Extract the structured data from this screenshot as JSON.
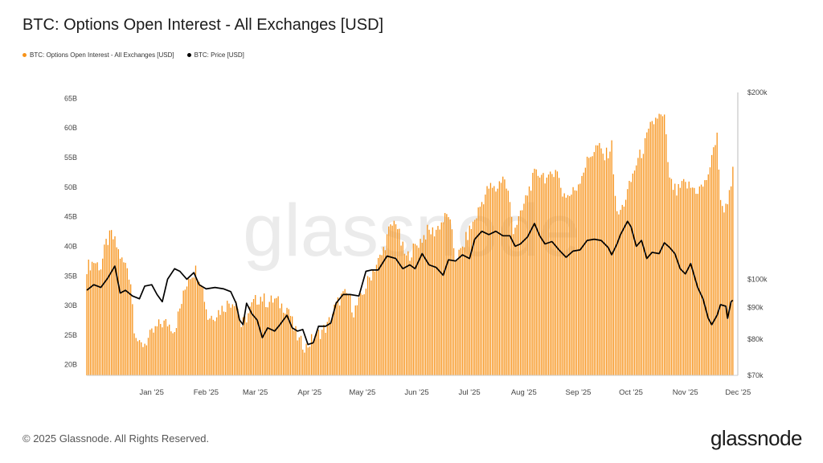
{
  "header": {
    "title": "BTC: Options Open Interest - All Exchanges [USD]"
  },
  "legend": [
    {
      "label": "BTC: Options Open Interest - All Exchanges [USD]",
      "color": "#F7931A"
    },
    {
      "label": "BTC: Price [USD]",
      "color": "#000000"
    }
  ],
  "watermark": "glassnode",
  "footer": {
    "copyright": "© 2025 Glassnode. All Rights Reserved.",
    "logo": "glassnode"
  },
  "chart_data": {
    "type": "bar",
    "title": "BTC: Options Open Interest - All Exchanges [USD]",
    "grid": false,
    "x_ticks": [
      "Jan '25",
      "Feb '25",
      "Mar '25",
      "Apr '25",
      "May '25",
      "Jun '25",
      "Jul '25",
      "Aug '25",
      "Sep '25",
      "Oct '25",
      "Nov '25",
      "Dec '25"
    ],
    "x_tick_dates": [
      "2025-01-01",
      "2025-02-01",
      "2025-03-01",
      "2025-04-01",
      "2025-05-01",
      "2025-06-01",
      "2025-07-01",
      "2025-08-01",
      "2025-09-01",
      "2025-10-01",
      "2025-11-01",
      "2025-12-01"
    ],
    "x_range": [
      "2024-12-01",
      "2025-12-05"
    ],
    "y_left": {
      "unit": "USD",
      "ticks": [
        "20B",
        "25B",
        "30B",
        "35B",
        "40B",
        "45B",
        "50B",
        "55B",
        "60B",
        "65B"
      ],
      "tick_values": [
        20,
        25,
        30,
        35,
        40,
        45,
        50,
        55,
        60,
        65
      ],
      "range": [
        18.2,
        66
      ]
    },
    "y_right": {
      "scale": "log",
      "ticks": [
        "$70k",
        "$80k",
        "$90k",
        "$100k",
        "$200k"
      ],
      "tick_values": [
        70000,
        80000,
        90000,
        100000,
        200000
      ],
      "range": [
        70000,
        200000
      ]
    },
    "series": [
      {
        "name": "BTC: Options Open Interest - All Exchanges [USD]",
        "axis": "left",
        "style": "bars",
        "color": "#F7931A",
        "unit": "B USD",
        "points": [
          [
            "2024-12-01",
            36.5
          ],
          [
            "2024-12-05",
            37.5
          ],
          [
            "2024-12-09",
            36.5
          ],
          [
            "2024-12-12",
            40.5
          ],
          [
            "2024-12-15",
            42.0
          ],
          [
            "2024-12-18",
            40.0
          ],
          [
            "2024-12-21",
            37.5
          ],
          [
            "2024-12-24",
            36.5
          ],
          [
            "2024-12-26",
            34.0
          ],
          [
            "2024-12-28",
            26.5
          ],
          [
            "2024-12-31",
            23.0
          ],
          [
            "2025-01-04",
            24.0
          ],
          [
            "2025-01-08",
            25.5
          ],
          [
            "2025-01-12",
            27.0
          ],
          [
            "2025-01-16",
            27.0
          ],
          [
            "2025-01-20",
            26.0
          ],
          [
            "2025-01-24",
            30.5
          ],
          [
            "2025-01-28",
            35.0
          ],
          [
            "2025-02-01",
            36.0
          ],
          [
            "2025-02-04",
            34.5
          ],
          [
            "2025-02-08",
            28.0
          ],
          [
            "2025-02-12",
            28.5
          ],
          [
            "2025-02-16",
            29.5
          ],
          [
            "2025-02-20",
            30.5
          ],
          [
            "2025-02-24",
            31.0
          ],
          [
            "2025-02-27",
            26.5
          ],
          [
            "2025-03-02",
            28.0
          ],
          [
            "2025-03-06",
            30.5
          ],
          [
            "2025-03-10",
            31.5
          ],
          [
            "2025-03-14",
            30.5
          ],
          [
            "2025-03-18",
            31.0
          ],
          [
            "2025-03-22",
            30.0
          ],
          [
            "2025-03-26",
            29.5
          ],
          [
            "2025-03-29",
            26.0
          ],
          [
            "2025-04-01",
            24.0
          ],
          [
            "2025-04-05",
            23.0
          ],
          [
            "2025-04-09",
            24.5
          ],
          [
            "2025-04-13",
            25.5
          ],
          [
            "2025-04-17",
            26.5
          ],
          [
            "2025-04-21",
            29.5
          ],
          [
            "2025-04-25",
            31.5
          ],
          [
            "2025-04-29",
            32.0
          ],
          [
            "2025-05-02",
            29.0
          ],
          [
            "2025-05-06",
            31.0
          ],
          [
            "2025-05-10",
            34.0
          ],
          [
            "2025-05-14",
            36.5
          ],
          [
            "2025-05-18",
            38.5
          ],
          [
            "2025-05-22",
            42.5
          ],
          [
            "2025-05-26",
            44.5
          ],
          [
            "2025-05-29",
            40.5
          ],
          [
            "2025-06-01",
            38.0
          ],
          [
            "2025-06-05",
            39.5
          ],
          [
            "2025-06-09",
            41.0
          ],
          [
            "2025-06-13",
            42.5
          ],
          [
            "2025-06-17",
            42.5
          ],
          [
            "2025-06-21",
            44.0
          ],
          [
            "2025-06-25",
            45.5
          ],
          [
            "2025-06-29",
            38.0
          ],
          [
            "2025-07-02",
            39.0
          ],
          [
            "2025-07-06",
            42.0
          ],
          [
            "2025-07-10",
            44.5
          ],
          [
            "2025-07-14",
            47.5
          ],
          [
            "2025-07-18",
            50.0
          ],
          [
            "2025-07-22",
            49.5
          ],
          [
            "2025-07-26",
            52.0
          ],
          [
            "2025-07-29",
            49.0
          ],
          [
            "2025-08-01",
            43.0
          ],
          [
            "2025-08-05",
            45.0
          ],
          [
            "2025-08-09",
            49.0
          ],
          [
            "2025-08-13",
            52.0
          ],
          [
            "2025-08-17",
            52.5
          ],
          [
            "2025-08-21",
            51.0
          ],
          [
            "2025-08-25",
            53.5
          ],
          [
            "2025-08-29",
            49.0
          ],
          [
            "2025-09-02",
            48.5
          ],
          [
            "2025-09-06",
            50.0
          ],
          [
            "2025-09-10",
            53.0
          ],
          [
            "2025-09-14",
            55.5
          ],
          [
            "2025-09-18",
            57.0
          ],
          [
            "2025-09-22",
            55.0
          ],
          [
            "2025-09-26",
            57.0
          ],
          [
            "2025-09-29",
            45.0
          ],
          [
            "2025-10-02",
            46.5
          ],
          [
            "2025-10-06",
            50.0
          ],
          [
            "2025-10-10",
            54.0
          ],
          [
            "2025-10-14",
            56.5
          ],
          [
            "2025-10-18",
            60.0
          ],
          [
            "2025-10-22",
            62.0
          ],
          [
            "2025-10-26",
            61.5
          ],
          [
            "2025-10-29",
            51.0
          ],
          [
            "2025-11-02",
            49.0
          ],
          [
            "2025-11-06",
            50.5
          ],
          [
            "2025-11-10",
            50.0
          ],
          [
            "2025-11-14",
            49.5
          ],
          [
            "2025-11-18",
            50.5
          ],
          [
            "2025-11-22",
            54.5
          ],
          [
            "2025-11-25",
            59.5
          ],
          [
            "2025-11-27",
            47.0
          ],
          [
            "2025-11-30",
            46.5
          ],
          [
            "2025-12-02",
            49.5
          ],
          [
            "2025-12-04",
            52.5
          ]
        ]
      },
      {
        "name": "BTC: Price [USD]",
        "axis": "right",
        "style": "line",
        "color": "#000000",
        "unit": "USD",
        "points": [
          [
            "2024-12-01",
            96000
          ],
          [
            "2024-12-05",
            98000
          ],
          [
            "2024-12-09",
            97000
          ],
          [
            "2024-12-13",
            100500
          ],
          [
            "2024-12-17",
            105000
          ],
          [
            "2024-12-20",
            95000
          ],
          [
            "2024-12-23",
            96000
          ],
          [
            "2024-12-27",
            94000
          ],
          [
            "2024-12-31",
            93000
          ],
          [
            "2025-01-03",
            97500
          ],
          [
            "2025-01-07",
            98000
          ],
          [
            "2025-01-10",
            94500
          ],
          [
            "2025-01-13",
            92000
          ],
          [
            "2025-01-16",
            100000
          ],
          [
            "2025-01-20",
            104000
          ],
          [
            "2025-01-23",
            103000
          ],
          [
            "2025-01-27",
            100000
          ],
          [
            "2025-01-31",
            102500
          ],
          [
            "2025-02-03",
            98000
          ],
          [
            "2025-02-07",
            96500
          ],
          [
            "2025-02-12",
            97000
          ],
          [
            "2025-02-17",
            96500
          ],
          [
            "2025-02-21",
            95500
          ],
          [
            "2025-02-24",
            91500
          ],
          [
            "2025-02-26",
            86000
          ],
          [
            "2025-02-28",
            84500
          ],
          [
            "2025-03-02",
            91500
          ],
          [
            "2025-03-05",
            88000
          ],
          [
            "2025-03-08",
            86000
          ],
          [
            "2025-03-11",
            80500
          ],
          [
            "2025-03-14",
            83500
          ],
          [
            "2025-03-18",
            82500
          ],
          [
            "2025-03-21",
            84500
          ],
          [
            "2025-03-25",
            87500
          ],
          [
            "2025-03-28",
            83500
          ],
          [
            "2025-03-31",
            82500
          ],
          [
            "2025-04-03",
            83000
          ],
          [
            "2025-04-06",
            78500
          ],
          [
            "2025-04-09",
            79000
          ],
          [
            "2025-04-12",
            84000
          ],
          [
            "2025-04-16",
            84000
          ],
          [
            "2025-04-19",
            85000
          ],
          [
            "2025-04-22",
            91500
          ],
          [
            "2025-04-26",
            94500
          ],
          [
            "2025-04-30",
            94500
          ],
          [
            "2025-05-05",
            94000
          ],
          [
            "2025-05-09",
            103000
          ],
          [
            "2025-05-12",
            103500
          ],
          [
            "2025-05-16",
            103500
          ],
          [
            "2025-05-21",
            109000
          ],
          [
            "2025-05-26",
            108000
          ],
          [
            "2025-05-30",
            104000
          ],
          [
            "2025-06-03",
            105500
          ],
          [
            "2025-06-06",
            104000
          ],
          [
            "2025-06-10",
            110000
          ],
          [
            "2025-06-14",
            105500
          ],
          [
            "2025-06-18",
            104500
          ],
          [
            "2025-06-22",
            101500
          ],
          [
            "2025-06-25",
            107500
          ],
          [
            "2025-06-29",
            107000
          ],
          [
            "2025-07-03",
            109500
          ],
          [
            "2025-07-07",
            108000
          ],
          [
            "2025-07-10",
            116000
          ],
          [
            "2025-07-14",
            119500
          ],
          [
            "2025-07-18",
            118000
          ],
          [
            "2025-07-22",
            119500
          ],
          [
            "2025-07-26",
            117500
          ],
          [
            "2025-07-30",
            117500
          ],
          [
            "2025-08-02",
            113000
          ],
          [
            "2025-08-05",
            114000
          ],
          [
            "2025-08-09",
            117000
          ],
          [
            "2025-08-13",
            123000
          ],
          [
            "2025-08-16",
            117500
          ],
          [
            "2025-08-19",
            114000
          ],
          [
            "2025-08-23",
            115000
          ],
          [
            "2025-08-27",
            111500
          ],
          [
            "2025-08-31",
            108500
          ],
          [
            "2025-09-04",
            111000
          ],
          [
            "2025-09-08",
            111500
          ],
          [
            "2025-09-12",
            115500
          ],
          [
            "2025-09-16",
            116000
          ],
          [
            "2025-09-20",
            115500
          ],
          [
            "2025-09-24",
            112500
          ],
          [
            "2025-09-26",
            109500
          ],
          [
            "2025-09-29",
            114000
          ],
          [
            "2025-10-01",
            118000
          ],
          [
            "2025-10-05",
            124000
          ],
          [
            "2025-10-07",
            121500
          ],
          [
            "2025-10-10",
            113000
          ],
          [
            "2025-10-13",
            115500
          ],
          [
            "2025-10-16",
            108000
          ],
          [
            "2025-10-19",
            110500
          ],
          [
            "2025-10-23",
            110000
          ],
          [
            "2025-10-26",
            114500
          ],
          [
            "2025-10-29",
            112500
          ],
          [
            "2025-11-01",
            110000
          ],
          [
            "2025-11-04",
            104000
          ],
          [
            "2025-11-07",
            102000
          ],
          [
            "2025-11-10",
            106000
          ],
          [
            "2025-11-14",
            97000
          ],
          [
            "2025-11-17",
            93000
          ],
          [
            "2025-11-20",
            86500
          ],
          [
            "2025-11-22",
            84500
          ],
          [
            "2025-11-25",
            87500
          ],
          [
            "2025-11-27",
            91000
          ],
          [
            "2025-11-30",
            90500
          ],
          [
            "2025-12-01",
            86500
          ],
          [
            "2025-12-03",
            92000
          ],
          [
            "2025-12-04",
            92500
          ]
        ]
      }
    ]
  }
}
